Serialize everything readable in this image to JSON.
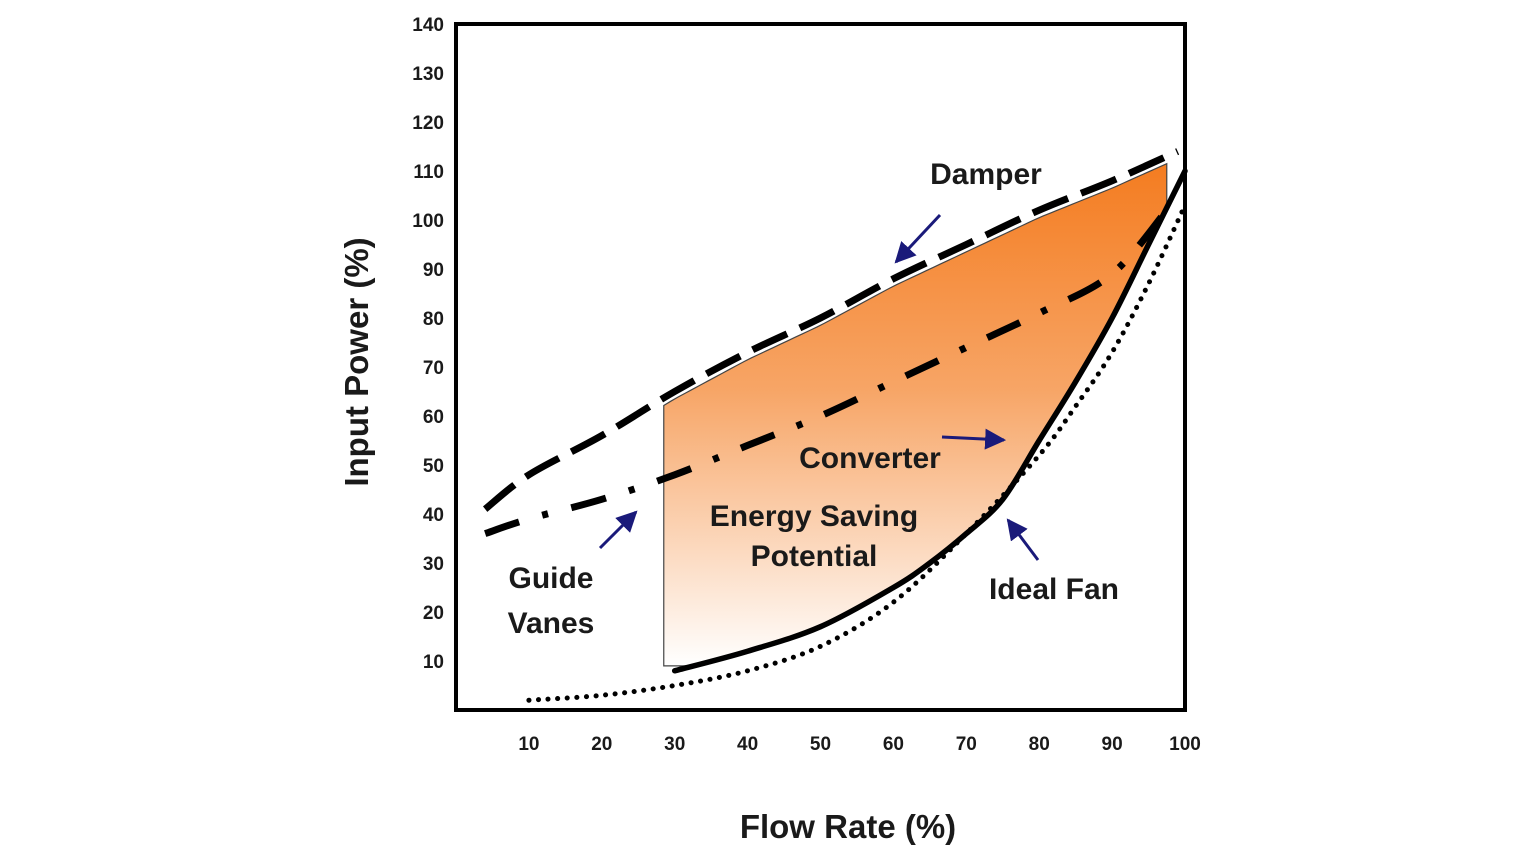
{
  "chart_data": {
    "type": "line",
    "title": "",
    "xlabel": "Flow Rate (%)",
    "ylabel": "Input Power (%)",
    "xlim": [
      0,
      100
    ],
    "ylim": [
      0,
      140
    ],
    "xticks": [
      10,
      20,
      30,
      40,
      50,
      60,
      70,
      80,
      90,
      100
    ],
    "yticks": [
      10,
      20,
      30,
      40,
      50,
      60,
      70,
      80,
      90,
      100,
      110,
      120,
      130,
      140
    ],
    "grid": false,
    "series": [
      {
        "name": "Damper",
        "style": "dashed",
        "color": "#000000",
        "x": [
          4,
          10,
          20,
          30,
          40,
          50,
          60,
          70,
          80,
          90,
          99
        ],
        "y": [
          41,
          48,
          56,
          65,
          73,
          80,
          88,
          95,
          102,
          108,
          114
        ]
      },
      {
        "name": "Guide Vanes",
        "style": "dash-dot",
        "color": "#000000",
        "x": [
          4,
          10,
          20,
          30,
          40,
          50,
          60,
          70,
          80,
          90,
          98
        ],
        "y": [
          36,
          39,
          43,
          48,
          54,
          60,
          67,
          74,
          81,
          89,
          103
        ]
      },
      {
        "name": "Converter",
        "style": "solid",
        "color": "#000000",
        "x": [
          30,
          40,
          50,
          60,
          65,
          70,
          75,
          80,
          85,
          90,
          95,
          100
        ],
        "y": [
          8,
          12,
          17,
          25,
          30,
          36,
          43,
          55,
          67,
          80,
          95,
          110
        ]
      },
      {
        "name": "Ideal Fan",
        "style": "dotted",
        "color": "#000000",
        "x": [
          10,
          20,
          30,
          40,
          50,
          60,
          70,
          80,
          85,
          90,
          95,
          100
        ],
        "y": [
          2,
          3,
          5,
          8,
          13,
          22,
          36,
          52,
          62,
          73,
          87,
          103
        ]
      }
    ],
    "shaded_region": {
      "label_line1": "Energy Saving",
      "label_line2": "Potential",
      "color_top": "#f47c20",
      "color_bottom": "#ffffff",
      "x_from": 28.5,
      "x_to": 98
    },
    "annotations": [
      {
        "text": "Damper"
      },
      {
        "text": "Converter"
      },
      {
        "text": "Guide"
      },
      {
        "text": "Vanes"
      },
      {
        "text": "Ideal Fan"
      }
    ],
    "arrow_color": "#1a1a7a"
  }
}
